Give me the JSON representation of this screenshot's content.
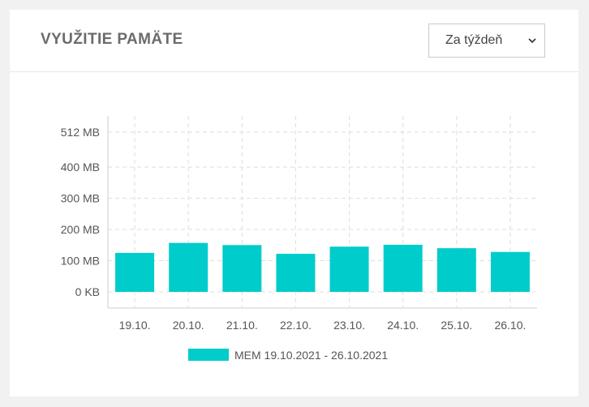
{
  "header": {
    "title": "VYUŽITIE PAMÄTE",
    "period_select": {
      "value": "Za týždeň",
      "icon": "chevron-down-icon"
    }
  },
  "colors": {
    "bar": "#00cccc",
    "grid": "#dddddd",
    "axis": "#dddddd",
    "tick_text": "#555555",
    "title_text": "#6b6b6b"
  },
  "chart_data": {
    "type": "bar",
    "title": "",
    "xlabel": "",
    "ylabel": "",
    "categories": [
      "19.10.",
      "20.10.",
      "21.10.",
      "22.10.",
      "23.10.",
      "24.10.",
      "25.10.",
      "26.10."
    ],
    "y_unit": "MB",
    "y_ticks": [
      {
        "value": 0,
        "label": "0 KB"
      },
      {
        "value": 100,
        "label": "100 MB"
      },
      {
        "value": 200,
        "label": "200 MB"
      },
      {
        "value": 300,
        "label": "300 MB"
      },
      {
        "value": 400,
        "label": "400 MB"
      },
      {
        "value": 512,
        "label": "512 MB"
      }
    ],
    "ylim": [
      0,
      512
    ],
    "grid": true,
    "legend_position": "bottom",
    "series": [
      {
        "name": "MEM 19.10.2021 - 26.10.2021",
        "values": [
          125,
          157,
          150,
          122,
          145,
          151,
          140,
          128
        ]
      }
    ]
  }
}
